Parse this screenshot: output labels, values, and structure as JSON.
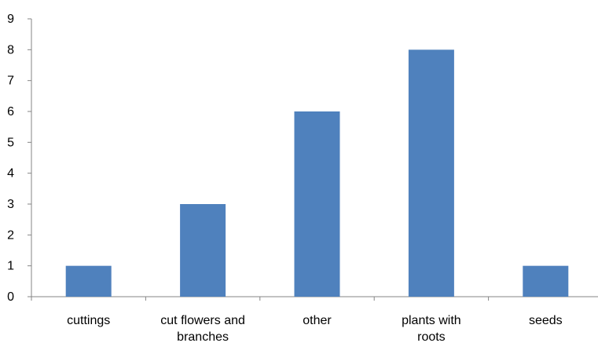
{
  "chart_data": {
    "type": "bar",
    "categories": [
      "cuttings",
      "cut flowers and branches",
      "other",
      "plants with roots",
      "seeds"
    ],
    "category_label_lines": [
      [
        "cuttings"
      ],
      [
        "cut flowers and",
        "branches"
      ],
      [
        "other"
      ],
      [
        "plants with",
        "roots"
      ],
      [
        "seeds"
      ]
    ],
    "values": [
      1,
      3,
      6,
      8,
      1
    ],
    "title": "",
    "xlabel": "",
    "ylabel": "",
    "ylim": [
      0,
      9
    ],
    "yticks": [
      "0",
      "1",
      "2",
      "3",
      "4",
      "5",
      "6",
      "7",
      "8",
      "9"
    ],
    "grid": false,
    "legend": "none",
    "bar_color": "#4F81BD",
    "axis_color": "#868686"
  }
}
